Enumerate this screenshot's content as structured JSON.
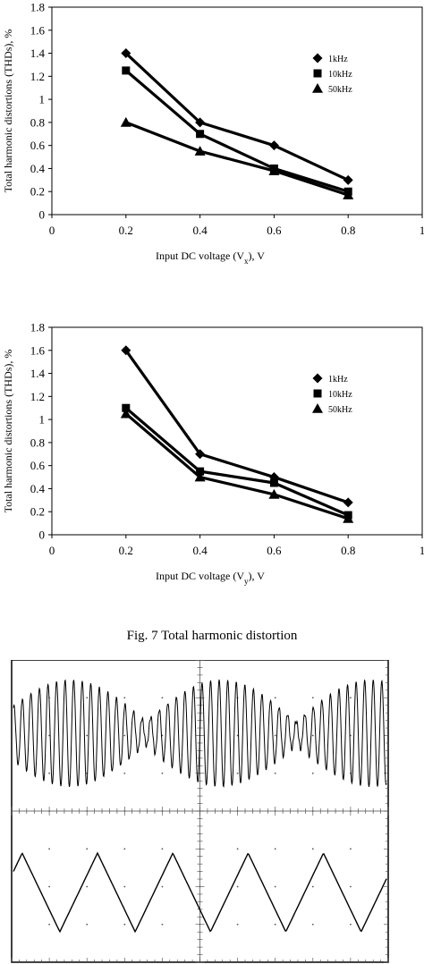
{
  "chart_data": [
    {
      "type": "line",
      "x": [
        0.2,
        0.4,
        0.6,
        0.8
      ],
      "series": [
        {
          "name": "1kHz",
          "marker": "diamond",
          "values": [
            1.4,
            0.8,
            0.6,
            0.3
          ]
        },
        {
          "name": "10kHz",
          "marker": "square",
          "values": [
            1.25,
            0.7,
            0.4,
            0.2
          ]
        },
        {
          "name": "50kHz",
          "marker": "triangle",
          "values": [
            0.8,
            0.55,
            0.38,
            0.17
          ]
        }
      ],
      "xlabel_main": "Input DC voltage (V",
      "xlabel_sub": "x",
      "xlabel_tail": "), V",
      "ylabel": "Total harmonic distortions (THDs), %",
      "xlim": [
        0,
        1
      ],
      "ylim": [
        0,
        1.8
      ],
      "xticks": [
        "0",
        "0.2",
        "0.4",
        "0.6",
        "0.8",
        "1"
      ],
      "yticks": [
        "0",
        "0.2",
        "0.4",
        "0.6",
        "0.8",
        "1",
        "1.2",
        "1.4",
        "1.6",
        "1.8"
      ],
      "legend_position": "right",
      "grid": false
    },
    {
      "type": "line",
      "x": [
        0.2,
        0.4,
        0.6,
        0.8
      ],
      "series": [
        {
          "name": "1kHz",
          "marker": "diamond",
          "values": [
            1.6,
            0.7,
            0.5,
            0.28
          ]
        },
        {
          "name": "10kHz",
          "marker": "square",
          "values": [
            1.1,
            0.55,
            0.45,
            0.17
          ]
        },
        {
          "name": "50kHz",
          "marker": "triangle",
          "values": [
            1.05,
            0.5,
            0.35,
            0.14
          ]
        }
      ],
      "xlabel_main": "Input DC voltage (V",
      "xlabel_sub": "y",
      "xlabel_tail": "), V",
      "ylabel": "Total harmonic distortions (THDs), %",
      "xlim": [
        0,
        1
      ],
      "ylim": [
        0,
        1.8
      ],
      "xticks": [
        "0",
        "0.2",
        "0.4",
        "0.6",
        "0.8",
        "1"
      ],
      "yticks": [
        "0",
        "0.2",
        "0.4",
        "0.6",
        "0.8",
        "1",
        "1.2",
        "1.4",
        "1.6",
        "1.8"
      ],
      "legend_position": "right",
      "grid": false
    }
  ],
  "caption": "Fig. 7 Total harmonic distortion",
  "oscilloscope": {
    "top_trace": "amplitude-modulated-sine",
    "bottom_trace": "triangle-wave",
    "triangle_periods": 5,
    "divisions_x": 10,
    "divisions_y": 8
  }
}
